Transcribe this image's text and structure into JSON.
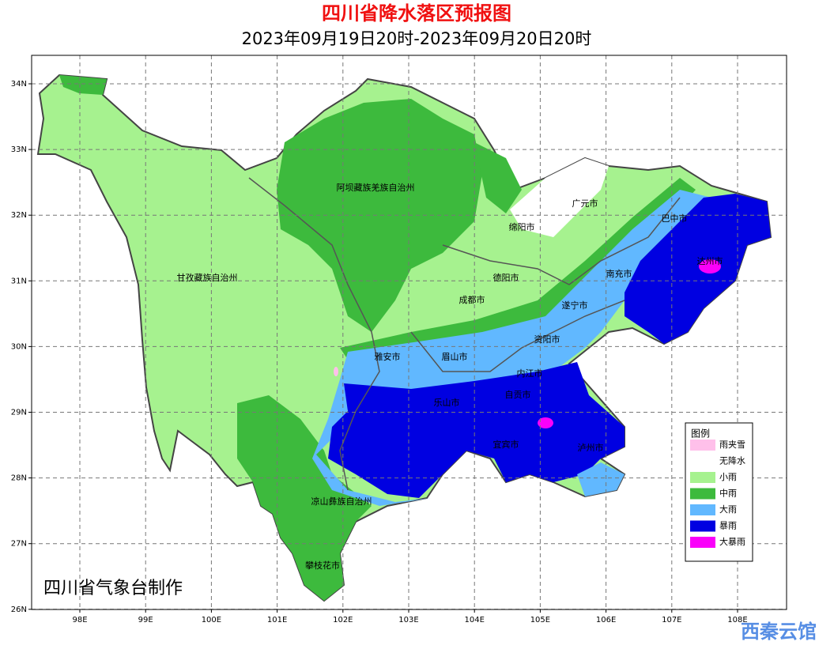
{
  "title": "四川省降水落区预报图",
  "subtitle": "2023年09月19日20时-2023年09月20日20时",
  "lat_ticks": [
    {
      "value": 34,
      "label": "34N"
    },
    {
      "value": 33,
      "label": "33N"
    },
    {
      "value": 32,
      "label": "32N"
    },
    {
      "value": 31,
      "label": "31N"
    },
    {
      "value": 30,
      "label": "30N"
    },
    {
      "value": 29,
      "label": "29N"
    },
    {
      "value": 28,
      "label": "28N"
    },
    {
      "value": 27,
      "label": "27N"
    },
    {
      "value": 26,
      "label": "26N"
    }
  ],
  "lon_ticks": [
    {
      "value": 98,
      "label": "98E"
    },
    {
      "value": 99,
      "label": "99E"
    },
    {
      "value": 100,
      "label": "100E"
    },
    {
      "value": 101,
      "label": "101E"
    },
    {
      "value": 102,
      "label": "102E"
    },
    {
      "value": 103,
      "label": "103E"
    },
    {
      "value": 104,
      "label": "104E"
    },
    {
      "value": 105,
      "label": "105E"
    },
    {
      "value": 106,
      "label": "106E"
    },
    {
      "value": 107,
      "label": "107E"
    },
    {
      "value": 108,
      "label": "108E"
    }
  ],
  "regions": [
    "阿坝藏族羌族自治州",
    "广元市",
    "绵阳市",
    "巴中市",
    "达州市",
    "甘孜藏族自治州",
    "德阳市",
    "南充市",
    "成都市",
    "遂宁市",
    "资阳市",
    "雅安市",
    "眉山市",
    "内江市",
    "乐山市",
    "自贡市",
    "宜宾市",
    "泸州市",
    "凉山彝族自治州",
    "攀枝花市"
  ],
  "legend": {
    "title": "图例",
    "items": [
      {
        "label": "雨夹雪",
        "color": "#ffc0ea"
      },
      {
        "label": "无降水",
        "color": "#ffffff"
      },
      {
        "label": "小雨",
        "color": "#a6f28f"
      },
      {
        "label": "中雨",
        "color": "#3dba3d"
      },
      {
        "label": "大雨",
        "color": "#61b8ff"
      },
      {
        "label": "暴雨",
        "color": "#0000e1"
      },
      {
        "label": "大暴雨",
        "color": "#fa00fa"
      }
    ]
  },
  "credit": "四川省气象台制作",
  "watermark": "西秦云馆"
}
